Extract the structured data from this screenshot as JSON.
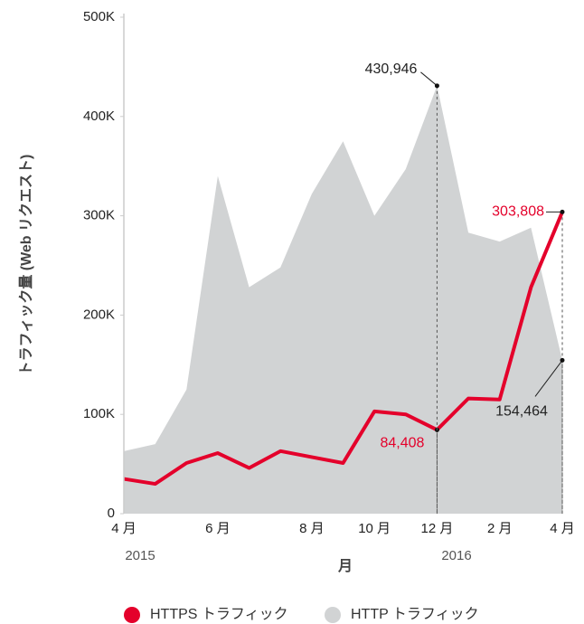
{
  "chart_data": {
    "type": "line-area",
    "x_label": "月",
    "y_label": "トラフィック量 (Web リクエスト)",
    "categories": [
      "4 月",
      null,
      null,
      "6 月",
      null,
      null,
      "8 月",
      null,
      "10 月",
      null,
      "12 月",
      null,
      "2 月",
      null,
      "4 月"
    ],
    "years": [
      "2015",
      "2016"
    ],
    "series": [
      {
        "name": "HTTPS トラフィック",
        "color": "#e4002b",
        "style": "line",
        "values": [
          35000,
          30000,
          51000,
          61000,
          46000,
          63000,
          57000,
          51000,
          103000,
          100000,
          84408,
          116000,
          115000,
          228000,
          303808
        ],
        "value_labels": [
          null,
          null,
          null,
          null,
          null,
          null,
          null,
          null,
          null,
          null,
          "84,408",
          null,
          null,
          null,
          "303,808"
        ]
      },
      {
        "name": "HTTP トラフィック",
        "color": "#d1d3d4",
        "style": "area",
        "values": [
          63000,
          70000,
          125000,
          340000,
          228000,
          248000,
          322000,
          375000,
          300000,
          347000,
          430946,
          283000,
          274000,
          288000,
          154464
        ],
        "value_labels": [
          null,
          null,
          null,
          null,
          null,
          null,
          null,
          null,
          null,
          null,
          "430,946",
          null,
          null,
          null,
          "154,464"
        ]
      }
    ],
    "ylim": [
      0,
      500000
    ],
    "yticks": [
      0,
      {
        "value": 100000,
        "label": "100K"
      },
      {
        "value": 200000,
        "label": "200K"
      },
      {
        "value": 300000,
        "label": "300K"
      },
      {
        "value": 400000,
        "label": "400K"
      },
      {
        "value": 500000,
        "label": "500K"
      }
    ],
    "legend": "bottom"
  }
}
